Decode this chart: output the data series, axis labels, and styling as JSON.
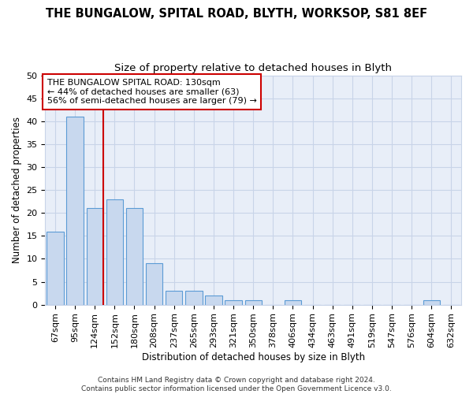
{
  "title": "THE BUNGALOW, SPITAL ROAD, BLYTH, WORKSOP, S81 8EF",
  "subtitle": "Size of property relative to detached houses in Blyth",
  "xlabel": "Distribution of detached houses by size in Blyth",
  "ylabel": "Number of detached properties",
  "categories": [
    "67sqm",
    "95sqm",
    "124sqm",
    "152sqm",
    "180sqm",
    "208sqm",
    "237sqm",
    "265sqm",
    "293sqm",
    "321sqm",
    "350sqm",
    "378sqm",
    "406sqm",
    "434sqm",
    "463sqm",
    "491sqm",
    "519sqm",
    "547sqm",
    "576sqm",
    "604sqm",
    "632sqm"
  ],
  "values": [
    16,
    41,
    21,
    23,
    21,
    9,
    3,
    3,
    2,
    1,
    1,
    0,
    1,
    0,
    0,
    0,
    0,
    0,
    0,
    1,
    0
  ],
  "bar_color": "#c8d8ee",
  "bar_edge_color": "#5b9bd5",
  "vline_color": "#cc0000",
  "annotation_text": "THE BUNGALOW SPITAL ROAD: 130sqm\n← 44% of detached houses are smaller (63)\n56% of semi-detached houses are larger (79) →",
  "annotation_box_color": "#ffffff",
  "annotation_box_edge": "#cc0000",
  "footer": "Contains HM Land Registry data © Crown copyright and database right 2024.\nContains public sector information licensed under the Open Government Licence v3.0.",
  "ylim": [
    0,
    50
  ],
  "yticks": [
    0,
    5,
    10,
    15,
    20,
    25,
    30,
    35,
    40,
    45,
    50
  ],
  "grid_color": "#c8d4e8",
  "ax_bg_color": "#e8eef8",
  "title_fontsize": 10.5,
  "subtitle_fontsize": 9.5,
  "axis_label_fontsize": 8.5,
  "tick_fontsize": 8,
  "annotation_fontsize": 8,
  "footer_fontsize": 6.5
}
